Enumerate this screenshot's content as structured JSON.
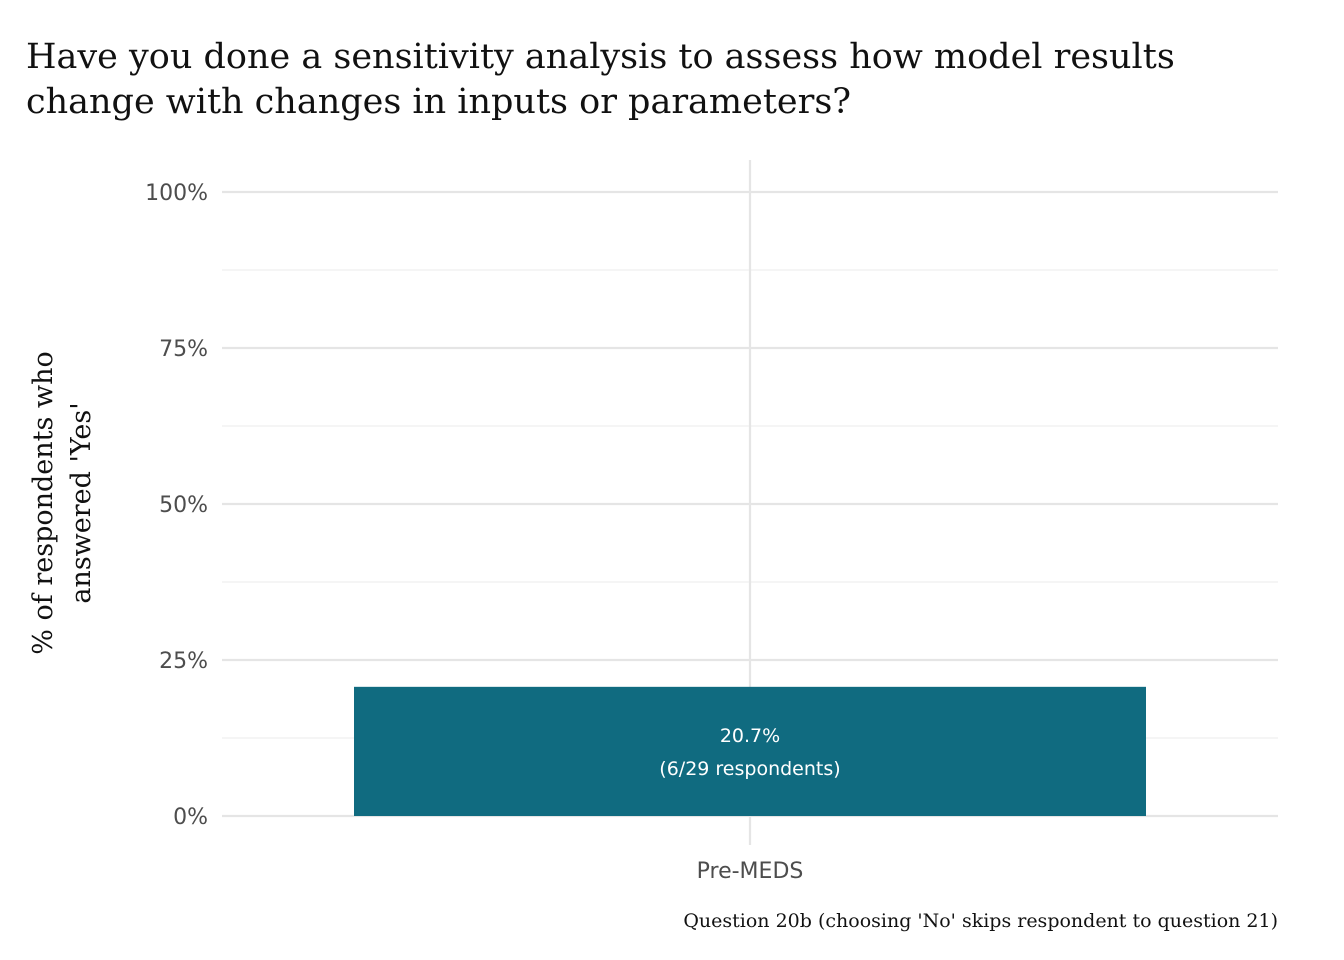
{
  "chart_data": {
    "type": "bar",
    "title_lines": [
      "Have you done a sensitivity analysis to assess how model results",
      "change with changes in inputs or parameters?"
    ],
    "ylabel_lines": [
      "% of respondents who",
      "answered 'Yes'"
    ],
    "xlabel": "",
    "categories": [
      "Pre-MEDS"
    ],
    "values": [
      20.7
    ],
    "bar_labels": [
      [
        "20.7%",
        "(6/29 respondents)"
      ]
    ],
    "ylim": [
      0,
      100
    ],
    "yticks": [
      0,
      25,
      50,
      75,
      100
    ],
    "ytick_labels": [
      "0%",
      "25%",
      "50%",
      "75%",
      "100%"
    ],
    "grid": true,
    "bar_color": "#106b80",
    "caption": "Question 20b (choosing 'No' skips respondent to question 21)"
  }
}
